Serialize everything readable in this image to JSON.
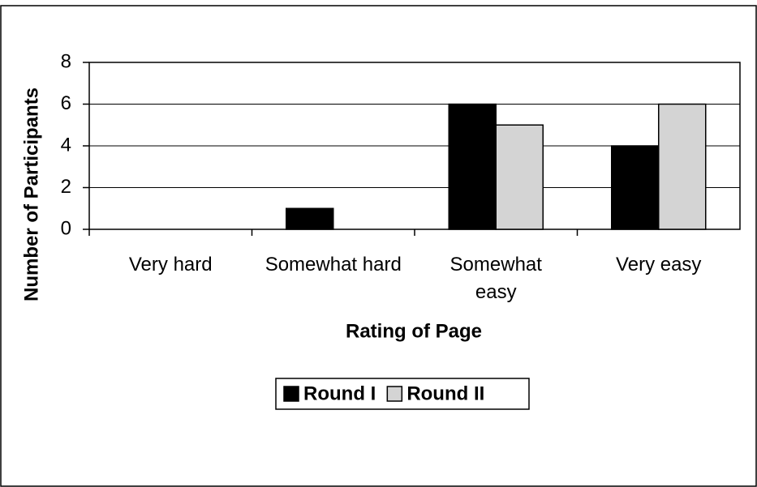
{
  "chart_data": {
    "type": "bar",
    "x_label": "Rating of Page",
    "y_label": "Number of Participants",
    "categories": [
      "Very hard",
      "Somewhat hard",
      "Somewhat easy",
      "Very easy"
    ],
    "series": [
      {
        "name": "Round I",
        "color": "#000000",
        "values": [
          0,
          1,
          6,
          4
        ]
      },
      {
        "name": "Round II",
        "color": "#d4d4d4",
        "values": [
          0,
          0,
          5,
          6
        ]
      }
    ],
    "ylim": [
      0,
      8
    ],
    "yticks": [
      0,
      2,
      4,
      6,
      8
    ],
    "grid": true,
    "legend": "bottom"
  }
}
